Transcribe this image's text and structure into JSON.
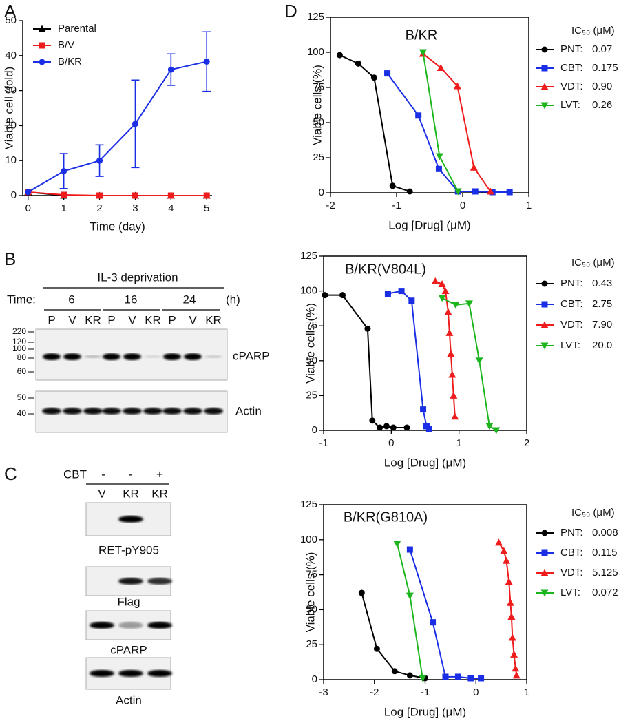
{
  "panel_labels": [
    "A",
    "B",
    "C",
    "D"
  ],
  "chart_data": [
    {
      "type": "line",
      "xlabel": "Time (day)",
      "ylabel": "Viable cell (fold)",
      "xlim": [
        -0.15,
        5.15
      ],
      "xticks": [
        0,
        1,
        2,
        3,
        4,
        5
      ],
      "ylim": [
        0,
        50
      ],
      "yticks": [
        0,
        10,
        20,
        30,
        40,
        50
      ],
      "grid": false,
      "frame": false,
      "legend": "upper left",
      "series": [
        {
          "name": "Parental",
          "color": "#000000",
          "marker": "triangle",
          "x": [
            0,
            1,
            2,
            3,
            4,
            5
          ],
          "values": [
            1,
            0,
            0,
            0,
            0,
            0
          ]
        },
        {
          "name": "B/V",
          "color": "#ee1c1c",
          "marker": "square",
          "x": [
            0,
            1,
            2,
            3,
            4,
            5
          ],
          "values": [
            1,
            0.2,
            0,
            0,
            0,
            0
          ]
        },
        {
          "name": "B/KR",
          "color": "#1a2ee6",
          "marker": "circle",
          "x": [
            0,
            1,
            2,
            3,
            4,
            5
          ],
          "values": [
            1,
            7,
            10,
            20.5,
            36,
            38.3
          ],
          "errors": [
            0,
            5,
            4.5,
            12.5,
            4.5,
            8.5
          ]
        }
      ]
    },
    {
      "type": "line",
      "title": "B/KR",
      "xlabel": "Log [Drug] (μM)",
      "ylabel": "Viable cells (%)",
      "xlim": [
        -2,
        1
      ],
      "xticks": [
        -2,
        -1,
        0,
        1
      ],
      "ylim": [
        0,
        125
      ],
      "yticks": [
        0,
        25,
        50,
        75,
        100,
        125
      ],
      "grid": false,
      "frame": true,
      "legend": "outside right",
      "legend_title": "IC₅₀ (μM)",
      "series": [
        {
          "name": "PNT:",
          "ic50": "0.07",
          "color": "#000000",
          "marker": "circle",
          "x": [
            -1.86,
            -1.58,
            -1.34,
            -1.06,
            -0.8
          ],
          "values": [
            98,
            92,
            82,
            5,
            1
          ]
        },
        {
          "name": "CBT:",
          "ic50": "0.175",
          "color": "#1a2ee6",
          "marker": "square",
          "x": [
            -1.14,
            -0.67,
            -0.36,
            -0.07,
            0.19,
            0.45,
            0.71
          ],
          "values": [
            85,
            55,
            17,
            1,
            1,
            0.5,
            0.5
          ]
        },
        {
          "name": "VDT:",
          "ic50": "0.90",
          "color": "#ee1c1c",
          "marker": "triangle",
          "x": [
            -0.6,
            -0.33,
            -0.08,
            0.17,
            0.42
          ],
          "values": [
            99,
            89,
            76,
            18,
            1
          ]
        },
        {
          "name": "LVT:",
          "ic50": "0.26",
          "color": "#1db51d",
          "marker": "triangle-down",
          "x": [
            -0.6,
            -0.35,
            -0.07
          ],
          "values": [
            100,
            26,
            1
          ]
        }
      ]
    },
    {
      "type": "line",
      "title": "B/KR(V804L)",
      "xlabel": "Log [Drug] (μM)",
      "ylabel": "Viable cells (%)",
      "xlim": [
        -1,
        2
      ],
      "xticks": [
        -1,
        0,
        1,
        2
      ],
      "ylim": [
        0,
        125
      ],
      "yticks": [
        0,
        25,
        50,
        75,
        100,
        125
      ],
      "grid": false,
      "frame": true,
      "legend": "outside right",
      "legend_title": "IC₅₀ (μM)",
      "series": [
        {
          "name": "PNT:",
          "ic50": "0.43",
          "color": "#000000",
          "marker": "circle",
          "x": [
            -0.98,
            -0.72,
            -0.35,
            -0.28,
            -0.17,
            -0.07,
            0.03,
            0.23
          ],
          "values": [
            97,
            97,
            73,
            7,
            2,
            3,
            2,
            2
          ]
        },
        {
          "name": "CBT:",
          "ic50": "2.75",
          "color": "#1a2ee6",
          "marker": "square",
          "x": [
            -0.05,
            0.15,
            0.3,
            0.47,
            0.52,
            0.56
          ],
          "values": [
            98,
            100,
            93,
            15,
            3,
            1
          ]
        },
        {
          "name": "VDT:",
          "ic50": "7.90",
          "color": "#ee1c1c",
          "marker": "triangle",
          "x": [
            0.65,
            0.75,
            0.8,
            0.84,
            0.86,
            0.88,
            0.9,
            0.92,
            0.94
          ],
          "values": [
            107,
            105,
            100,
            85,
            70,
            55,
            40,
            25,
            10
          ]
        },
        {
          "name": "LVT:",
          "ic50": "20.0",
          "color": "#1db51d",
          "marker": "triangle-down",
          "x": [
            0.75,
            0.95,
            1.15,
            1.3,
            1.45,
            1.55
          ],
          "values": [
            95,
            90,
            91,
            50,
            3,
            0
          ]
        }
      ]
    },
    {
      "type": "line",
      "title": "B/KR(G810A)",
      "xlabel": "Log [Drug] (μM)",
      "ylabel": "Viable cells (%)",
      "xlim": [
        -3,
        1
      ],
      "xticks": [
        -3,
        -2,
        -1,
        0,
        1
      ],
      "ylim": [
        0,
        125
      ],
      "yticks": [
        0,
        25,
        50,
        75,
        100,
        125
      ],
      "grid": false,
      "frame": true,
      "legend": "outside right",
      "legend_title": "IC₅₀ (μM)",
      "series": [
        {
          "name": "PNT:",
          "ic50": "0.008",
          "color": "#000000",
          "marker": "circle",
          "x": [
            -2.25,
            -1.95,
            -1.6,
            -1.3,
            -1.0
          ],
          "values": [
            62,
            22,
            6,
            3,
            1
          ]
        },
        {
          "name": "CBT:",
          "ic50": "0.115",
          "color": "#1a2ee6",
          "marker": "square",
          "x": [
            -1.3,
            -0.85,
            -0.6,
            -0.35,
            -0.1,
            0.1
          ],
          "values": [
            93,
            41,
            2,
            2,
            1,
            1
          ]
        },
        {
          "name": "VDT:",
          "ic50": "5.125",
          "color": "#ee1c1c",
          "marker": "triangle",
          "x": [
            0.45,
            0.55,
            0.6,
            0.65,
            0.68,
            0.7,
            0.72,
            0.75,
            0.78,
            0.8
          ],
          "values": [
            98,
            92,
            85,
            70,
            55,
            45,
            30,
            18,
            8,
            3
          ]
        },
        {
          "name": "LVT:",
          "ic50": "0.072",
          "color": "#1db51d",
          "marker": "triangle-down",
          "x": [
            -1.55,
            -1.3,
            -1.05
          ],
          "values": [
            97,
            60,
            1
          ]
        }
      ]
    }
  ],
  "blot_b": {
    "header": "IL-3 deprivation",
    "time_label": "Time:",
    "times": [
      "6",
      "16",
      "24"
    ],
    "unit": "(h)",
    "lanes": [
      "P",
      "V",
      "KR",
      "P",
      "V",
      "KR",
      "P",
      "V",
      "KR"
    ],
    "markers_top": [
      220,
      120,
      100,
      80,
      60
    ],
    "markers_bottom": [
      50,
      40
    ],
    "bands": [
      "cPARP",
      "Actin"
    ]
  },
  "blot_c": {
    "treatment": "CBT",
    "signs": [
      "-",
      "-",
      "+"
    ],
    "lanes": [
      "V",
      "KR",
      "KR"
    ],
    "bands": [
      "RET-pY905",
      "Flag",
      "cPARP",
      "Actin"
    ]
  }
}
